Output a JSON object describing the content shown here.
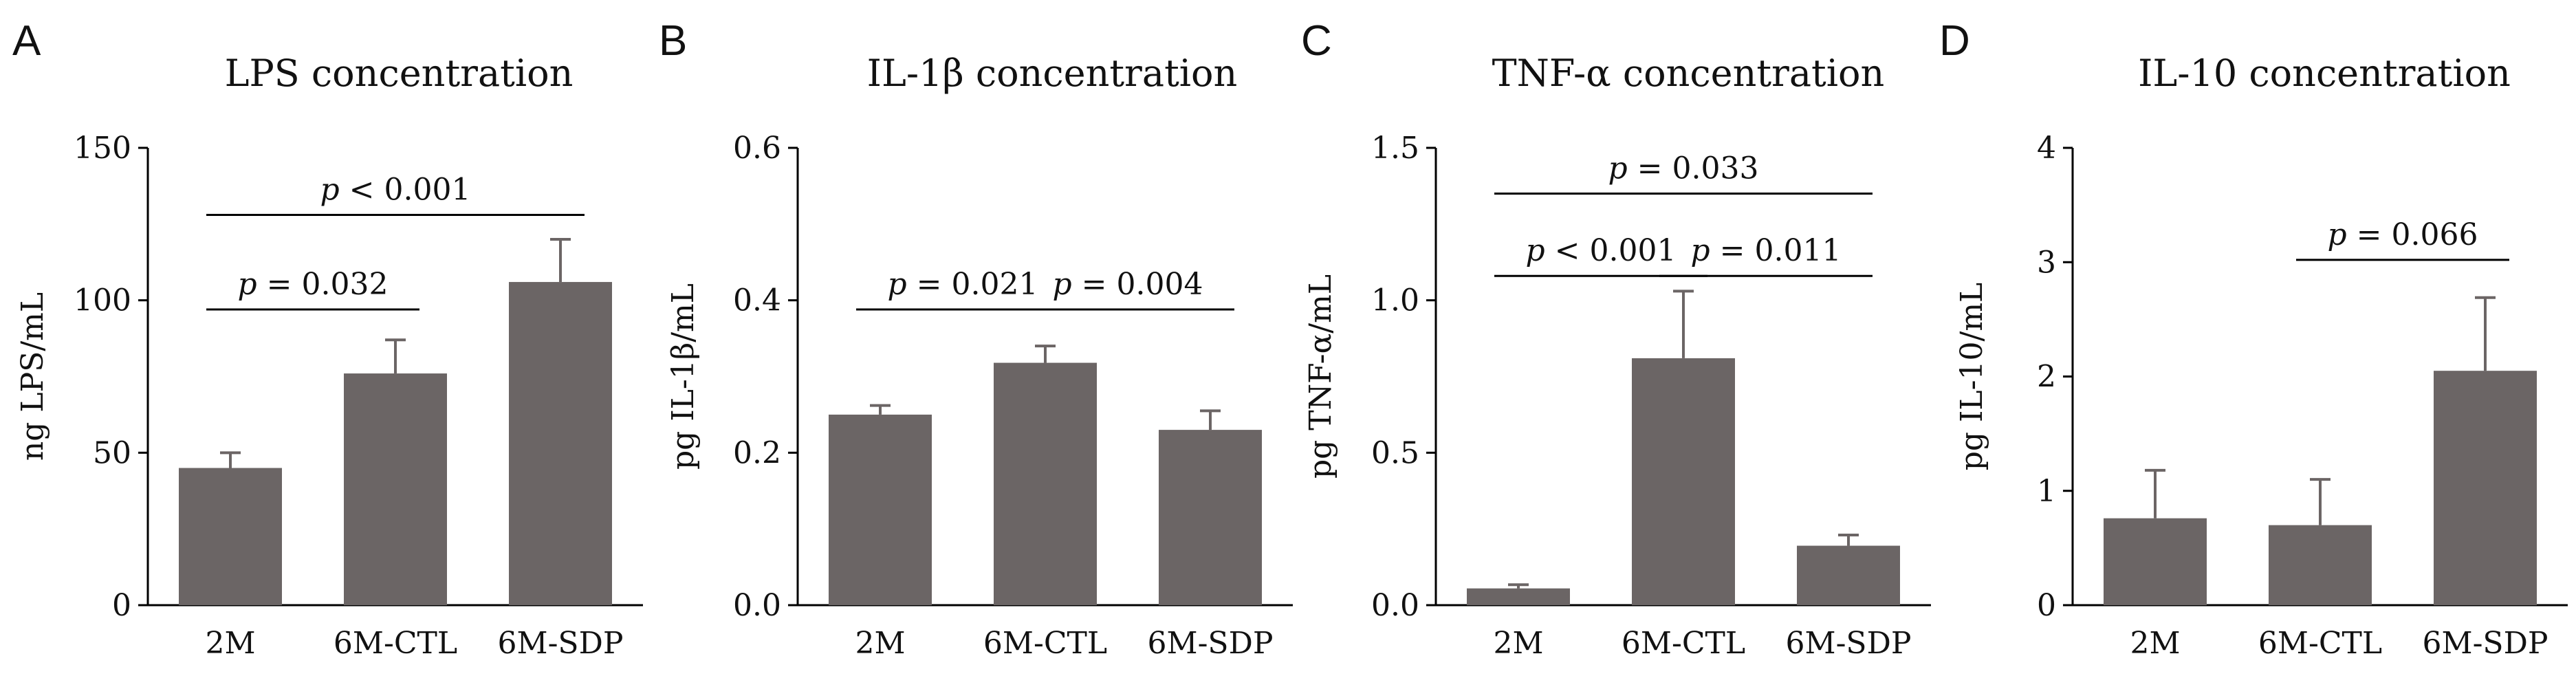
{
  "chart_data": [
    {
      "type": "bar",
      "panel": "A",
      "title": "LPS concentration",
      "ylabel": "ng LPS/mL",
      "ylim": [
        0,
        150
      ],
      "yticks": [
        0,
        50,
        100,
        150
      ],
      "categories": [
        "2M",
        "6M-CTL",
        "6M-SDP"
      ],
      "values": [
        45,
        76,
        106
      ],
      "errors": [
        5,
        11,
        14
      ],
      "significance": [
        {
          "from": 0,
          "to": 1,
          "y": 97,
          "label": "= 0.032"
        },
        {
          "from": 0,
          "to": 2,
          "y": 128,
          "label": "< 0.001"
        }
      ]
    },
    {
      "type": "bar",
      "panel": "B",
      "title": "IL-1β concentration",
      "ylabel": "pg IL-1β/mL",
      "ylim": [
        0,
        0.6
      ],
      "yticks": [
        0.0,
        0.2,
        0.4,
        0.6
      ],
      "ytick_labels": [
        "0.0",
        "0.2",
        "0.4",
        "0.6"
      ],
      "categories": [
        "2M",
        "6M-CTL",
        "6M-SDP"
      ],
      "values": [
        0.25,
        0.318,
        0.23
      ],
      "errors": [
        0.012,
        0.022,
        0.025
      ],
      "significance": [
        {
          "from": 0,
          "to": 1,
          "y": 0.388,
          "label": "= 0.021"
        },
        {
          "from": 1,
          "to": 2,
          "y": 0.388,
          "label": "= 0.004"
        }
      ]
    },
    {
      "type": "bar",
      "panel": "C",
      "title": "TNF-α concentration",
      "ylabel": "pg TNF-α/mL",
      "ylim": [
        0,
        1.5
      ],
      "yticks": [
        0.0,
        0.5,
        1.0,
        1.5
      ],
      "ytick_labels": [
        "0.0",
        "0.5",
        "1.0",
        "1.5"
      ],
      "categories": [
        "2M",
        "6M-CTL",
        "6M-SDP"
      ],
      "values": [
        0.055,
        0.81,
        0.195
      ],
      "errors": [
        0.012,
        0.22,
        0.035
      ],
      "significance": [
        {
          "from": 0,
          "to": 1,
          "y": 1.08,
          "label": "< 0.001"
        },
        {
          "from": 1,
          "to": 2,
          "y": 1.08,
          "label": "= 0.011"
        },
        {
          "from": 0,
          "to": 2,
          "y": 1.35,
          "label": "= 0.033"
        }
      ]
    },
    {
      "type": "bar",
      "panel": "D",
      "title": "IL-10 concentration",
      "ylabel": "pg IL-10/mL",
      "ylim": [
        0,
        4
      ],
      "yticks": [
        0,
        1,
        2,
        3,
        4
      ],
      "categories": [
        "2M",
        "6M-CTL",
        "6M-SDP"
      ],
      "values": [
        0.76,
        0.7,
        2.05
      ],
      "errors": [
        0.42,
        0.4,
        0.64
      ],
      "significance": [
        {
          "from": 1,
          "to": 2,
          "y": 3.02,
          "label": "= 0.066"
        }
      ]
    }
  ],
  "p_symbol": "p"
}
